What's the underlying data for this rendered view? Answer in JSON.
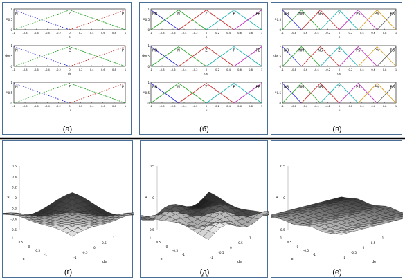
{
  "figure": {
    "colors": {
      "frame": "#4a6f96",
      "divider": "#000000",
      "axis": "#000000"
    },
    "mf_panels": [
      {
        "caption": "(а)",
        "rows": [
          {
            "ylabel": "e",
            "xlabel": "e",
            "labels": [
              "N",
              "Z",
              "P"
            ]
          },
          {
            "ylabel": "de",
            "xlabel": "de",
            "labels": [
              "N",
              "Z",
              "P"
            ]
          },
          {
            "ylabel": "u",
            "xlabel": "u",
            "labels": [
              "N",
              "Z",
              "P"
            ]
          }
        ],
        "xticks": [
          "-1",
          "-0.8",
          "-0.6",
          "-0.4",
          "-0.2",
          "0",
          "0.2",
          "0.4",
          "0.6",
          "0.8",
          "1"
        ],
        "yticks": [
          "1",
          "0.5",
          "0"
        ]
      },
      {
        "caption": "(б)",
        "rows": [
          {
            "ylabel": "e",
            "xlabel": "e",
            "labels": [
              "NB",
              "N",
              "Z",
              "P",
              "PB"
            ]
          },
          {
            "ylabel": "de",
            "xlabel": "de",
            "labels": [
              "NB",
              "N",
              "Z",
              "P",
              "PB"
            ]
          },
          {
            "ylabel": "u",
            "xlabel": "u",
            "labels": [
              "NB",
              "N",
              "Z",
              "P",
              "PB"
            ]
          }
        ],
        "xticks": [
          "-1",
          "-0.8",
          "-0.6",
          "-0.4",
          "-0.2",
          "0",
          "0.2",
          "0.4",
          "0.6",
          "0.8",
          "1"
        ],
        "yticks": [
          "1",
          "0.5",
          "0"
        ]
      },
      {
        "caption": "(в)",
        "rows": [
          {
            "ylabel": "e",
            "xlabel": "e",
            "labels": [
              "NB",
              "NM",
              "NS",
              "Z",
              "PS",
              "PM",
              "PB"
            ]
          },
          {
            "ylabel": "de",
            "xlabel": "de",
            "labels": [
              "NB",
              "NM",
              "NS",
              "Z",
              "PS",
              "PM",
              "PB"
            ]
          },
          {
            "ylabel": "u",
            "xlabel": "u",
            "labels": [
              "NB",
              "NM",
              "NS",
              "Z",
              "PS",
              "PM",
              "PB"
            ]
          }
        ],
        "xticks": [
          "-1",
          "-0.8",
          "-0.6",
          "-0.4",
          "-0.2",
          "0",
          "0.2",
          "0.4",
          "0.6",
          "0.8",
          "1"
        ],
        "yticks": [
          "1",
          "0.5",
          "0"
        ]
      }
    ],
    "surface_panels": [
      {
        "caption": "(г)",
        "zticks": [
          "0.6",
          "0.4",
          "0.2",
          "0",
          "-0.2",
          "-0.4",
          "-0.6"
        ],
        "xlabel": "e",
        "ylabel": "de",
        "zlabel": "u",
        "xticks": [
          "1",
          "0.5",
          "0",
          "-0.5",
          "-1"
        ],
        "yticks": [
          "-1",
          "-0.5",
          "0",
          "0.5",
          "1"
        ]
      },
      {
        "caption": "(д)",
        "zticks": [
          "0.5",
          "0",
          "-0.5"
        ],
        "xlabel": "e",
        "ylabel": "de",
        "zlabel": "u",
        "xticks": [
          "1",
          "0.5",
          "0",
          "-0.5",
          "-1"
        ],
        "yticks": [
          "-1",
          "-0.5",
          "0",
          "0.5",
          "1"
        ]
      },
      {
        "caption": "(е)",
        "zticks": [
          "0.5",
          "0",
          "-0.5"
        ],
        "xlabel": "e",
        "ylabel": "de",
        "zlabel": "u",
        "xticks": [
          "1",
          "0.5",
          "0",
          "-0.5",
          "-1"
        ],
        "yticks": [
          "-1",
          "-0.5",
          "0",
          "0.5",
          "1"
        ]
      }
    ]
  }
}
